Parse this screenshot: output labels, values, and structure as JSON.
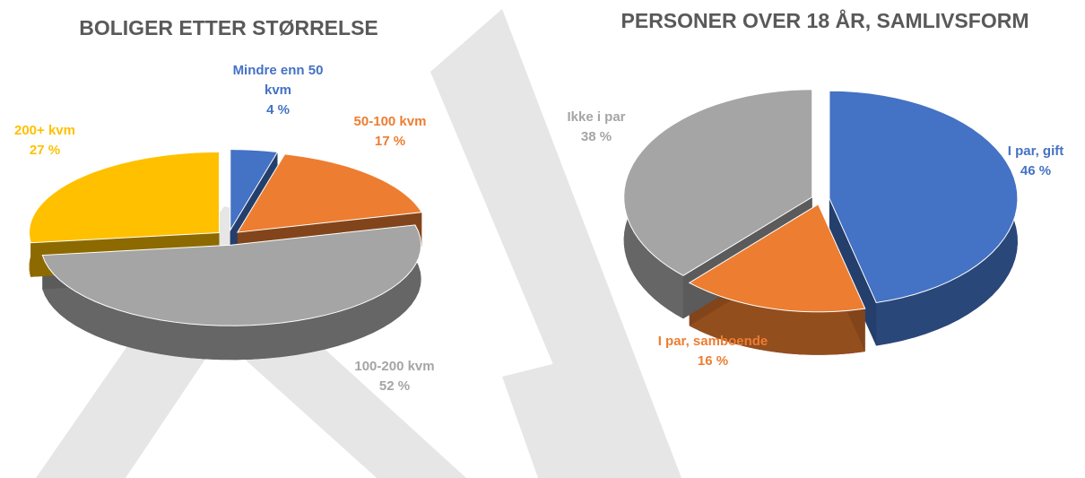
{
  "chart_data": [
    {
      "type": "pie",
      "title": "BOLIGER ETTER STØRRELSE",
      "categories": [
        "Mindre enn 50 kvm",
        "50-100 kvm",
        "100-200 kvm",
        "200+ kvm"
      ],
      "values": [
        4,
        17,
        52,
        27
      ],
      "value_labels": [
        "4 %",
        "17 %",
        "52 %",
        "27 %"
      ],
      "colors": [
        "#4472c4",
        "#ed7d31",
        "#a5a5a5",
        "#ffc000"
      ]
    },
    {
      "type": "pie",
      "title": "PERSONER OVER 18 ÅR, SAMLIVSFORM",
      "categories": [
        "I par, gift",
        "I par, samboende",
        "Ikke i par"
      ],
      "values": [
        46,
        16,
        38
      ],
      "value_labels": [
        "46 %",
        "16 %",
        "38 %"
      ],
      "colors": [
        "#4472c4",
        "#ed7d31",
        "#a5a5a5"
      ]
    }
  ]
}
